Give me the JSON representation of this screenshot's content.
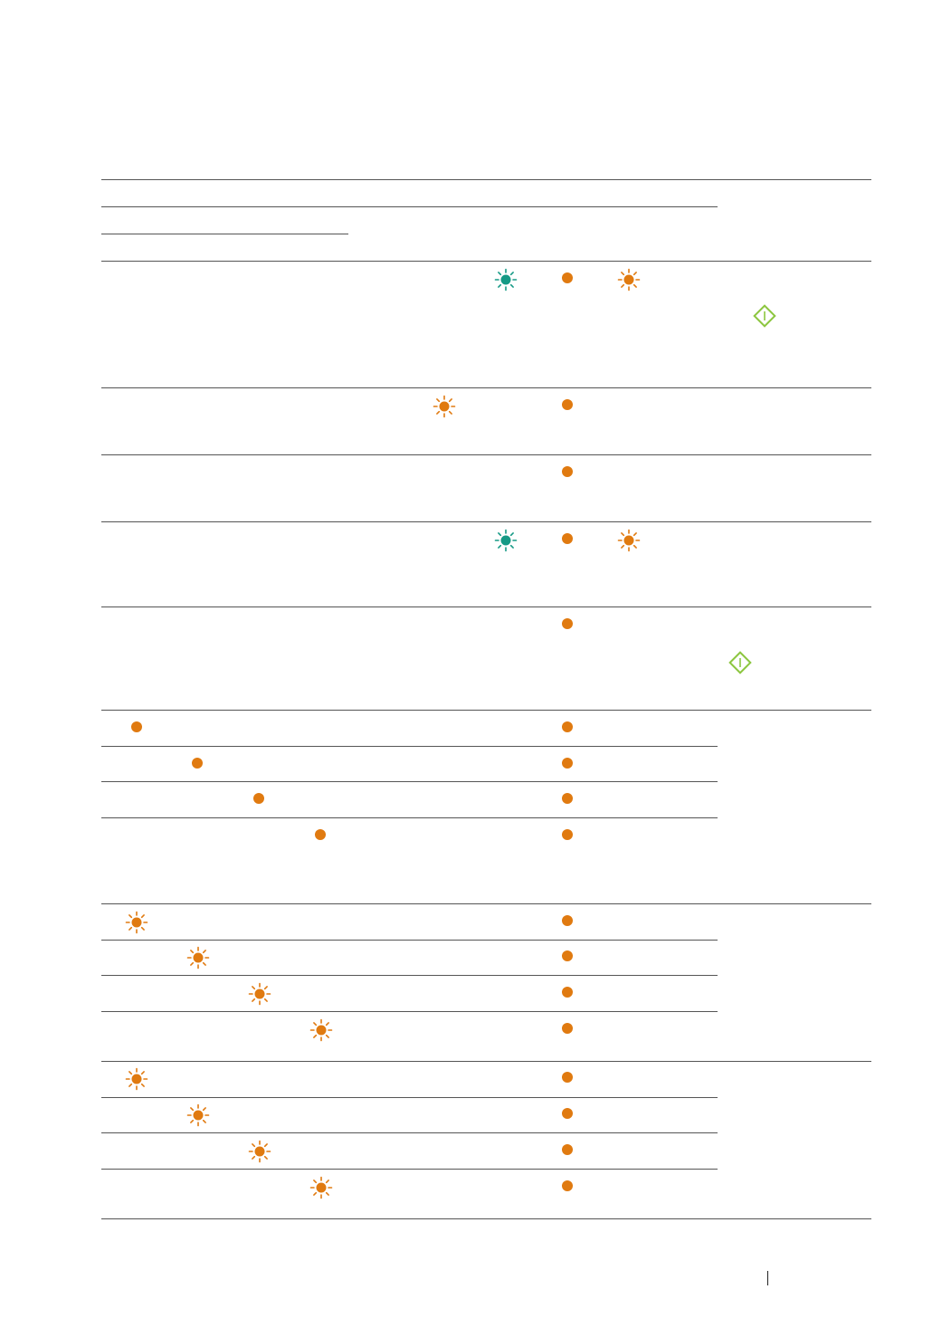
{
  "colors": {
    "amber": "#e07a10",
    "teal": "#169a86",
    "green": "#8cc63f",
    "rule": "#555555"
  },
  "icons": {
    "solid": "led-solid-icon",
    "blinking": "led-blinking-icon",
    "start": "start-button-icon"
  },
  "rows": [
    {
      "name": "table-row-1",
      "leds": [
        "teal-blinking",
        "amber-solid",
        "amber-blinking"
      ],
      "action": "start-button"
    },
    {
      "name": "table-row-2",
      "leds": [
        "amber-blinking",
        "amber-solid"
      ]
    },
    {
      "name": "table-row-3",
      "leds": [
        "amber-solid"
      ]
    },
    {
      "name": "table-row-4",
      "leds": [
        "teal-blinking",
        "amber-solid",
        "amber-blinking"
      ]
    },
    {
      "name": "table-row-5",
      "leds": [
        "amber-solid"
      ],
      "action": "start-button"
    },
    {
      "name": "table-row-group-a",
      "leds": [
        "amber-solid",
        "amber-solid"
      ],
      "sub_rows": 4
    },
    {
      "name": "table-row-group-b",
      "leds": [
        "amber-blinking",
        "amber-solid"
      ],
      "sub_rows": 4
    },
    {
      "name": "table-row-group-c",
      "leds": [
        "amber-blinking",
        "amber-solid"
      ],
      "sub_rows": 4
    }
  ]
}
